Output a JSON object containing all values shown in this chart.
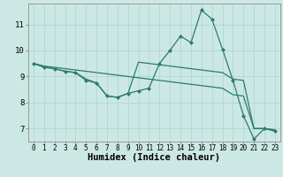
{
  "xlabel": "Humidex (Indice chaleur)",
  "bg_color": "#cce8e4",
  "grid_color": "#aad4ce",
  "line_color": "#2d7b6e",
  "xlim": [
    -0.5,
    23.5
  ],
  "ylim": [
    6.5,
    11.8
  ],
  "xticks": [
    0,
    1,
    2,
    3,
    4,
    5,
    6,
    7,
    8,
    9,
    10,
    11,
    12,
    13,
    14,
    15,
    16,
    17,
    18,
    19,
    20,
    21,
    22,
    23
  ],
  "yticks": [
    7,
    8,
    9,
    10,
    11
  ],
  "line1_x": [
    0,
    1,
    2,
    3,
    4,
    5,
    6,
    7,
    8,
    9,
    10,
    11,
    12,
    13,
    14,
    15,
    16,
    17,
    18,
    19,
    20,
    21,
    22,
    23
  ],
  "line1_y": [
    9.5,
    9.4,
    9.35,
    9.3,
    9.25,
    9.2,
    9.15,
    9.1,
    9.05,
    9.0,
    8.95,
    8.9,
    8.85,
    8.8,
    8.75,
    8.7,
    8.65,
    8.6,
    8.55,
    8.3,
    8.25,
    7.0,
    7.0,
    6.95
  ],
  "line2_x": [
    0,
    1,
    2,
    3,
    4,
    5,
    6,
    7,
    8,
    9,
    10,
    11,
    12,
    13,
    14,
    15,
    16,
    17,
    18,
    19,
    20,
    21,
    22,
    23
  ],
  "line2_y": [
    9.5,
    9.38,
    9.3,
    9.2,
    9.15,
    8.9,
    8.75,
    8.25,
    8.2,
    8.35,
    9.55,
    9.5,
    9.45,
    9.4,
    9.35,
    9.3,
    9.25,
    9.2,
    9.15,
    8.9,
    8.85,
    7.0,
    7.0,
    6.95
  ],
  "line3_x": [
    0,
    1,
    2,
    3,
    4,
    5,
    6,
    7,
    8,
    9,
    10,
    11,
    12,
    13,
    14,
    15,
    16,
    17,
    18,
    19,
    20,
    21,
    22,
    23
  ],
  "line3_y": [
    9.5,
    9.35,
    9.3,
    9.2,
    9.15,
    8.85,
    8.75,
    8.25,
    8.2,
    8.35,
    8.45,
    8.55,
    9.5,
    10.0,
    10.55,
    10.3,
    11.55,
    11.2,
    10.05,
    8.85,
    7.5,
    6.6,
    7.0,
    6.9
  ],
  "markersize": 2.5,
  "linewidth": 0.9
}
